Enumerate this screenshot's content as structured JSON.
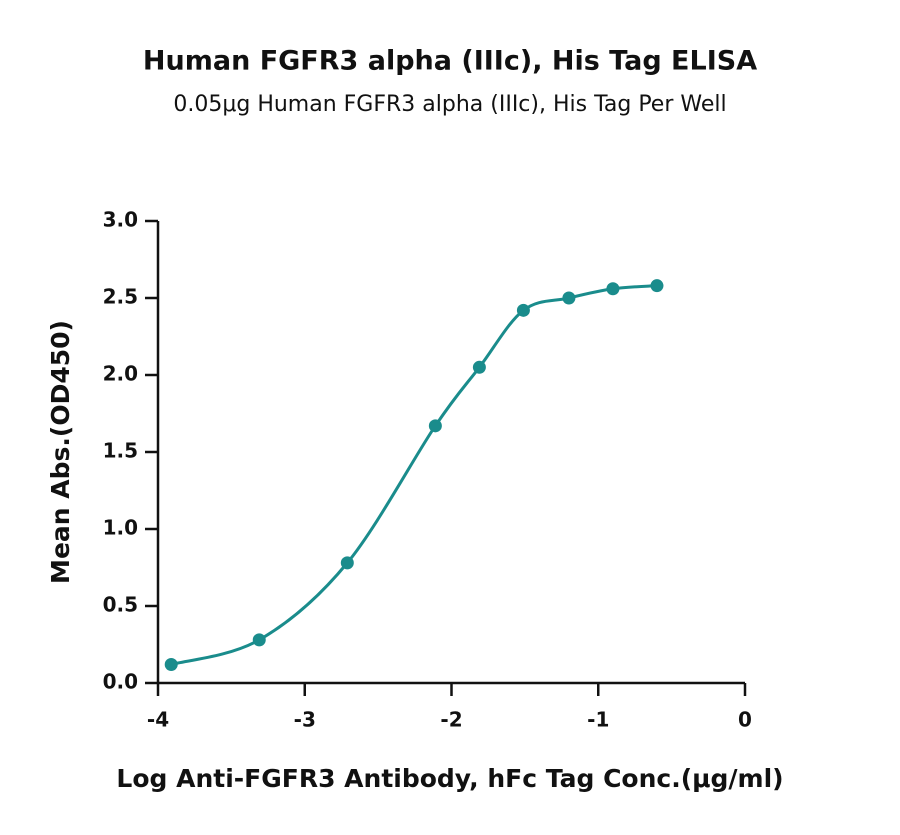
{
  "chart_data": {
    "type": "scatter",
    "title": "Human FGFR3 alpha (IIIc), His Tag ELISA",
    "subtitle": "0.05μg Human FGFR3 alpha (IIIc), His Tag Per Well",
    "x_label": "Log Anti-FGFR3 Antibody, hFc Tag Conc.(μg/ml)",
    "y_label": "Mean Abs.(OD450)",
    "x": [
      -3.91,
      -3.31,
      -2.71,
      -2.11,
      -1.81,
      -1.51,
      -1.2,
      -0.9,
      -0.6
    ],
    "series": [
      {
        "name": "Mean Abs.(OD450)",
        "color": "#1a8c8c",
        "values": [
          0.12,
          0.28,
          0.78,
          1.67,
          2.05,
          2.42,
          2.5,
          2.56,
          2.58
        ]
      }
    ],
    "xlim": [
      -4,
      0
    ],
    "xticks": [
      -4,
      -3,
      -2,
      -1,
      0
    ],
    "ylim": [
      0,
      3
    ],
    "yticks": [
      {
        "value": 0,
        "label": "0.0"
      },
      0.5,
      {
        "value": 1,
        "label": "1.0"
      },
      1.5,
      {
        "value": 2,
        "label": "2.0"
      },
      2.5,
      {
        "value": 3,
        "label": "3.0"
      }
    ],
    "grid": false
  }
}
